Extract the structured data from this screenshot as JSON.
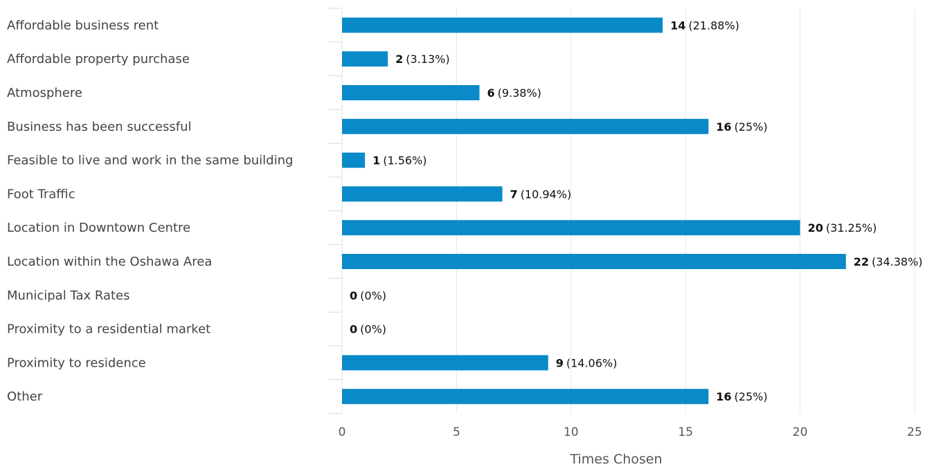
{
  "chart_data": {
    "type": "bar",
    "orientation": "horizontal",
    "categories": [
      "Affordable business rent",
      "Affordable property purchase",
      "Atmosphere",
      "Business has been successful",
      "Feasible to live and work in the same building",
      "Foot Traffic",
      "Location in Downtown Centre",
      "Location within the Oshawa Area",
      "Municipal Tax Rates",
      "Proximity to a residential market",
      "Proximity to residence",
      "Other"
    ],
    "values": [
      14,
      2,
      6,
      16,
      1,
      7,
      20,
      22,
      0,
      0,
      9,
      16
    ],
    "percent_labels": [
      "(21.88%)",
      "(3.13%)",
      "(9.38%)",
      "(25%)",
      "(1.56%)",
      "(10.94%)",
      "(31.25%)",
      "(34.38%)",
      "(0%)",
      "(0%)",
      "(14.06%)",
      "(25%)"
    ],
    "xlabel": "Times Chosen",
    "ylabel": "",
    "xlim": [
      0,
      25
    ],
    "xticks": [
      0,
      5,
      10,
      15,
      20,
      25
    ],
    "grid": true,
    "legend": "none",
    "bar_color": "#0a8ac8"
  }
}
